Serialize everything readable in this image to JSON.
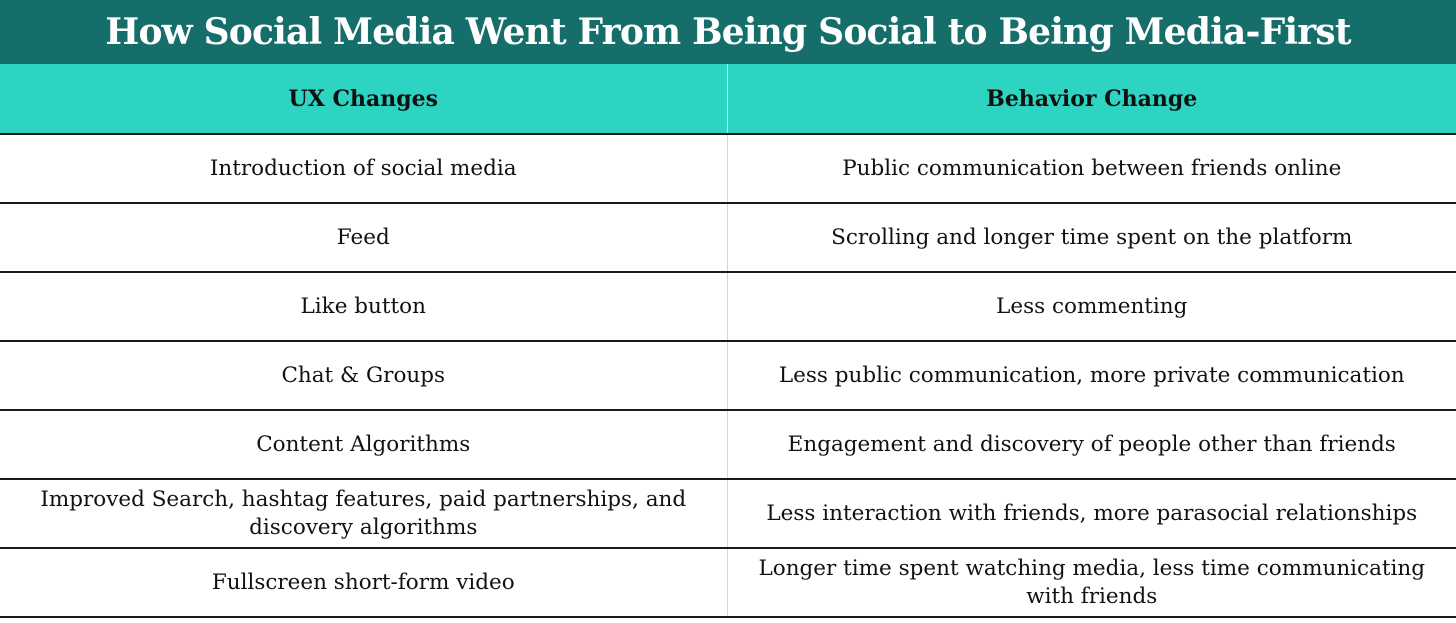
{
  "title": "How Social Media Went From Being Social to Being Media-First",
  "colors": {
    "title_background": "#156e6a",
    "header_background": "#2dd4c2",
    "title_text": "#ffffff",
    "body_text": "#111111",
    "row_divider": "#1a1a1a"
  },
  "table": {
    "headers": [
      "UX Changes",
      "Behavior Change"
    ],
    "rows": [
      [
        "Introduction of social media",
        "Public communication between friends online"
      ],
      [
        "Feed",
        "Scrolling and longer time spent on the platform"
      ],
      [
        "Like button",
        "Less commenting"
      ],
      [
        "Chat & Groups",
        "Less public communication, more private communication"
      ],
      [
        "Content Algorithms",
        "Engagement and discovery of people other than friends"
      ],
      [
        "Improved Search, hashtag features, paid partnerships, and discovery algorithms",
        "Less interaction with friends, more parasocial relationships"
      ],
      [
        "Fullscreen short-form video",
        "Longer time spent watching media, less time communicating with friends"
      ]
    ]
  }
}
